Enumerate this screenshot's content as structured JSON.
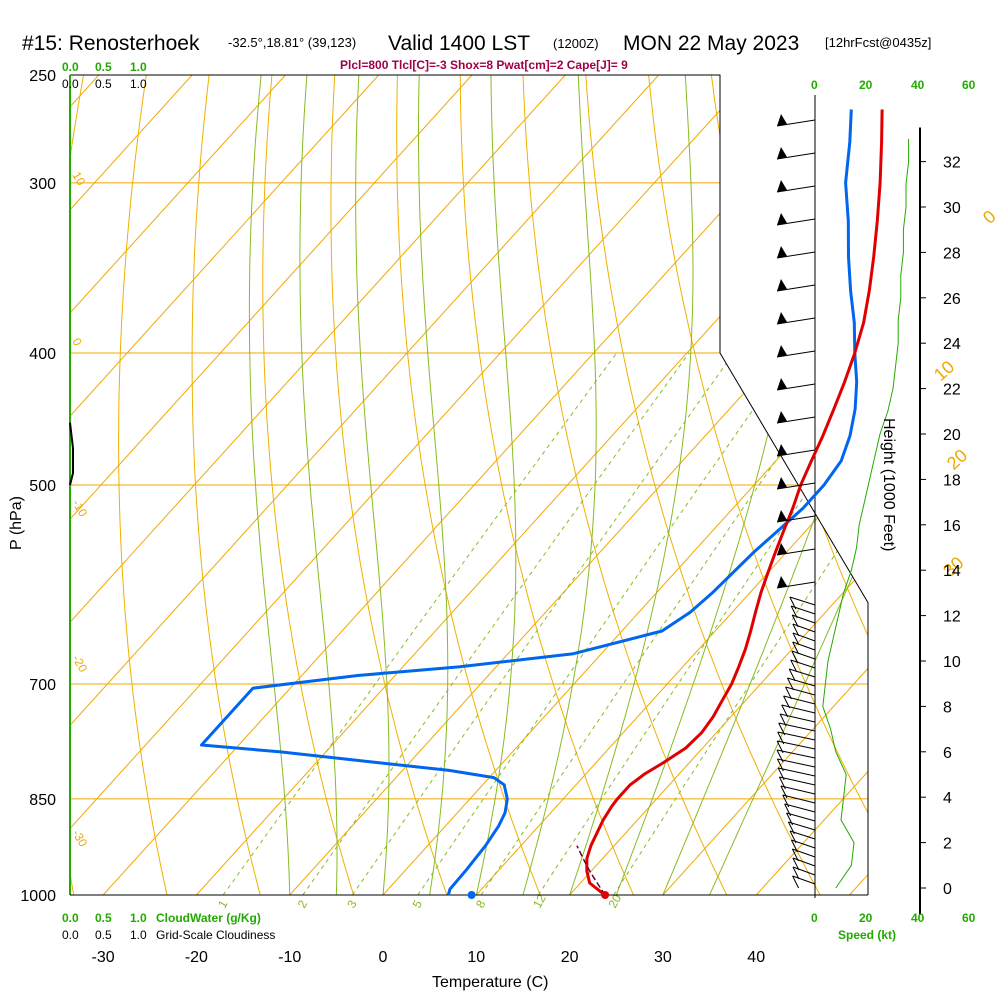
{
  "header": {
    "station": "#15: Renosterhoek",
    "coords": "-32.5°,18.81° (39,123)",
    "valid_time": "Valid 1400 LST",
    "utc": "(1200Z)",
    "date": "MON 22 May 2023",
    "forecast": "[12hrFcst@0435z]",
    "params": "Plcl=800 Tlcl[C]=-3 Shox=8 Pwat[cm]=2 Cape[J]= 9"
  },
  "cloud_scale": {
    "ticks_green": [
      "0.0",
      "0.5",
      "1.0"
    ],
    "ticks_black": [
      "0.0",
      "0.5",
      "1.0"
    ],
    "bottom_green_label": "CloudWater (g/Kg)",
    "bottom_black_label": "Grid-Scale Cloudiness"
  },
  "speed_axis": {
    "ticks": [
      "0",
      "20",
      "40",
      "60"
    ],
    "label": "Speed (kt)"
  },
  "colors": {
    "temperature": "#e00000",
    "dewpoint": "#0066ee",
    "isotherm": "#f0a800",
    "dry_adiabat": "#f0b000",
    "moist_adiabat": "#88bb22",
    "mixing_ratio": "#88bb22",
    "height": "#22aa00",
    "cloudwater": "#22aa00"
  },
  "chart_data": {
    "type": "line",
    "title": "",
    "xlabel": "Temperature (C)",
    "ylabel": "P (hPa)",
    "y2label": "Height (1000 Feet)",
    "x_ticks": [
      -30,
      -20,
      -10,
      0,
      10,
      20,
      30,
      40
    ],
    "p_ticks": [
      250,
      300,
      400,
      500,
      700,
      850,
      1000
    ],
    "height_ticks": [
      0,
      2,
      4,
      6,
      8,
      10,
      12,
      14,
      16,
      18,
      20,
      22,
      24,
      26,
      28,
      30,
      32
    ],
    "xlim": [
      -34,
      46
    ],
    "plim": [
      250,
      1000
    ],
    "y_scale": "log",
    "isotherm_labels": [
      "0",
      "10",
      "20",
      "30",
      "-10",
      "-20",
      "-30",
      "10"
    ],
    "mixing_ratio_labels": [
      "1",
      "2",
      "3",
      "5",
      "8",
      "12",
      "20"
    ],
    "series": [
      {
        "name": "temperature",
        "points": [
          [
            1000,
            23.8
          ],
          [
            993,
            22.8
          ],
          [
            980,
            21.0
          ],
          [
            960,
            19.5
          ],
          [
            940,
            18.3
          ],
          [
            920,
            17.5
          ],
          [
            900,
            16.9
          ],
          [
            880,
            16.3
          ],
          [
            860,
            15.9
          ],
          [
            850,
            15.8
          ],
          [
            830,
            15.8
          ],
          [
            815,
            16.3
          ],
          [
            800,
            17.2
          ],
          [
            780,
            18.2
          ],
          [
            760,
            18.4
          ],
          [
            740,
            18.1
          ],
          [
            720,
            17.5
          ],
          [
            700,
            16.9
          ],
          [
            680,
            16.0
          ],
          [
            660,
            15.0
          ],
          [
            640,
            13.8
          ],
          [
            620,
            12.5
          ],
          [
            600,
            11.2
          ],
          [
            580,
            10.0
          ],
          [
            560,
            8.8
          ],
          [
            540,
            7.6
          ],
          [
            520,
            6.4
          ],
          [
            500,
            5.0
          ],
          [
            480,
            3.8
          ],
          [
            460,
            2.6
          ],
          [
            440,
            1.2
          ],
          [
            420,
            -0.3
          ],
          [
            400,
            -2.0
          ],
          [
            380,
            -4.0
          ],
          [
            360,
            -6.5
          ],
          [
            340,
            -9.3
          ],
          [
            320,
            -12.4
          ],
          [
            300,
            -15.8
          ],
          [
            280,
            -19.6
          ],
          [
            265,
            -22.7
          ]
        ]
      },
      {
        "name": "dewpoint",
        "points": [
          [
            1000,
            7.0
          ],
          [
            990,
            6.6
          ],
          [
            960,
            6.5
          ],
          [
            920,
            6.2
          ],
          [
            890,
            5.7
          ],
          [
            870,
            5.1
          ],
          [
            850,
            4.0
          ],
          [
            830,
            2.3
          ],
          [
            820,
            0.5
          ],
          [
            810,
            -5.0
          ],
          [
            800,
            -13.0
          ],
          [
            785,
            -25.0
          ],
          [
            776,
            -34.0
          ],
          [
            705,
            -34.0
          ],
          [
            690,
            -24.0
          ],
          [
            680,
            -14.0
          ],
          [
            665,
            -3.0
          ],
          [
            640,
            4.3
          ],
          [
            620,
            5.5
          ],
          [
            600,
            6.0
          ],
          [
            560,
            6.5
          ],
          [
            540,
            7.0
          ],
          [
            520,
            7.5
          ],
          [
            500,
            7.5
          ],
          [
            480,
            7.0
          ],
          [
            460,
            5.5
          ],
          [
            440,
            3.5
          ],
          [
            420,
            1.0
          ],
          [
            400,
            -2.0
          ],
          [
            380,
            -5.0
          ],
          [
            360,
            -8.5
          ],
          [
            340,
            -12.0
          ],
          [
            320,
            -15.5
          ],
          [
            300,
            -19.5
          ],
          [
            280,
            -23.0
          ],
          [
            265,
            -26.0
          ]
        ]
      },
      {
        "name": "parcel",
        "points": [
          [
            1000,
            23.8
          ],
          [
            980,
            21.8
          ],
          [
            960,
            19.8
          ],
          [
            940,
            17.9
          ],
          [
            920,
            16.0
          ]
        ]
      },
      {
        "name": "surface-dewpoint",
        "points": [
          [
            1000,
            9.5
          ]
        ]
      },
      {
        "name": "height-profile",
        "points": [
          [
            0,
            8
          ],
          [
            1,
            14
          ],
          [
            2,
            15
          ],
          [
            3,
            10
          ],
          [
            4,
            11
          ],
          [
            5,
            12
          ],
          [
            6,
            8
          ],
          [
            7,
            6
          ],
          [
            8,
            3
          ],
          [
            9,
            4
          ],
          [
            10,
            5
          ],
          [
            11,
            7
          ],
          [
            12,
            9
          ],
          [
            13,
            11
          ],
          [
            14,
            14
          ],
          [
            15,
            16
          ],
          [
            16,
            17
          ],
          [
            17,
            19
          ],
          [
            18,
            21
          ],
          [
            19,
            23
          ],
          [
            20,
            25
          ],
          [
            21,
            28
          ],
          [
            22,
            30
          ],
          [
            23,
            31
          ],
          [
            24,
            32
          ],
          [
            25,
            32
          ],
          [
            26,
            33
          ],
          [
            27,
            33
          ],
          [
            28,
            34
          ],
          [
            29,
            34
          ],
          [
            30,
            35
          ],
          [
            31,
            35
          ],
          [
            32,
            36
          ],
          [
            33,
            36
          ]
        ]
      }
    ]
  }
}
